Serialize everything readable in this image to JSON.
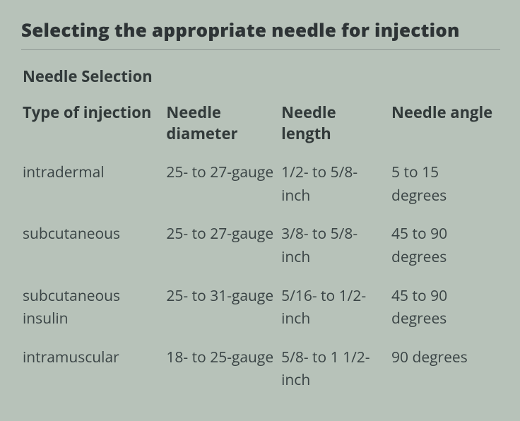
{
  "page": {
    "title": "Selecting the appropriate needle for injection",
    "subheading": "Needle Selection",
    "background_color": "#b7c2b9",
    "text_color": "#313c3f",
    "rule_color": "#8d9692",
    "title_fontsize_pt": 20,
    "heading_fontsize_pt": 17,
    "body_fontsize_pt": 16
  },
  "table": {
    "type": "table",
    "column_widths_pct": [
      30,
      24,
      23,
      23
    ],
    "columns": [
      "Type of injection",
      "Needle diameter",
      "Needle length",
      "Needle angle"
    ],
    "rows": [
      {
        "type": "intradermal",
        "diameter": "25- to 27-gauge",
        "length": "1/2- to 5/8-inch",
        "angle": "5 to 15 degrees"
      },
      {
        "type": "subcutaneous",
        "diameter": "25- to 27-gauge",
        "length": "3/8- to 5/8-inch",
        "angle": "45 to 90 degrees"
      },
      {
        "type": "subcutaneous insulin",
        "diameter": "25- to 31-gauge",
        "length": "5/16- to 1/2-inch",
        "angle": "45 to 90 degrees"
      },
      {
        "type": "intramuscular",
        "diameter": "18- to 25-gauge",
        "length": "5/8- to 1 1/2-inch",
        "angle": "90 degrees"
      }
    ]
  }
}
